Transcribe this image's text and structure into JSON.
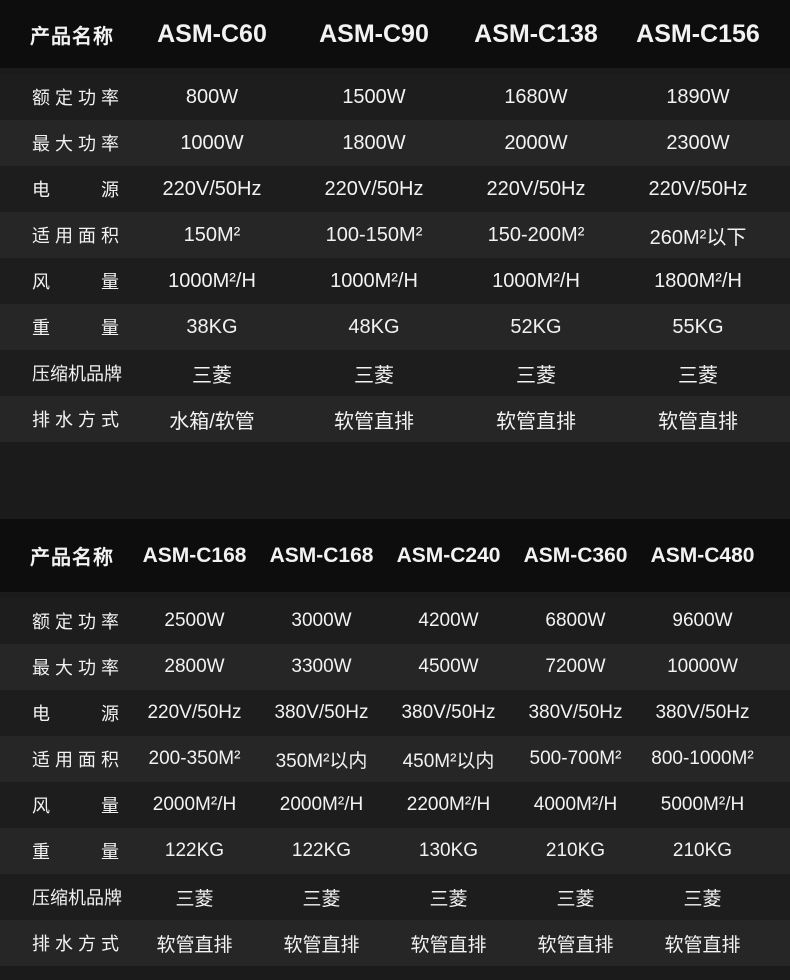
{
  "tables": [
    {
      "header_label": "产品名称",
      "models": [
        "ASM-C60",
        "ASM-C90",
        "ASM-C138",
        "ASM-C156"
      ],
      "rows": [
        {
          "label": "额定功率",
          "values": [
            "800W",
            "1500W",
            "1680W",
            "1890W"
          ]
        },
        {
          "label": "最大功率",
          "values": [
            "1000W",
            "1800W",
            "2000W",
            "2300W"
          ]
        },
        {
          "label": "电　　源",
          "values": [
            "220V/50Hz",
            "220V/50Hz",
            "220V/50Hz",
            "220V/50Hz"
          ]
        },
        {
          "label": "适用面积",
          "values": [
            "150M²",
            "100-150M²",
            "150-200M²",
            "260M²以下"
          ]
        },
        {
          "label": "风　　量",
          "values": [
            "1000M²/H",
            "1000M²/H",
            "1000M²/H",
            "1800M²/H"
          ]
        },
        {
          "label": "重　　量",
          "values": [
            "38KG",
            "48KG",
            "52KG",
            "55KG"
          ]
        },
        {
          "label": "压缩机品牌",
          "values": [
            "三菱",
            "三菱",
            "三菱",
            "三菱"
          ]
        },
        {
          "label": "排水方式",
          "values": [
            "水箱/软管",
            "软管直排",
            "软管直排",
            "软管直排"
          ]
        }
      ]
    },
    {
      "header_label": "产品名称",
      "models": [
        "ASM-C168",
        "ASM-C168",
        "ASM-C240",
        "ASM-C360",
        "ASM-C480"
      ],
      "rows": [
        {
          "label": "额定功率",
          "values": [
            "2500W",
            "3000W",
            "4200W",
            "6800W",
            "9600W"
          ]
        },
        {
          "label": "最大功率",
          "values": [
            "2800W",
            "3300W",
            "4500W",
            "7200W",
            "10000W"
          ]
        },
        {
          "label": "电　　源",
          "values": [
            "220V/50Hz",
            "380V/50Hz",
            "380V/50Hz",
            "380V/50Hz",
            "380V/50Hz"
          ]
        },
        {
          "label": "适用面积",
          "values": [
            "200-350M²",
            "350M²以内",
            "450M²以内",
            "500-700M²",
            "800-1000M²"
          ]
        },
        {
          "label": "风　　量",
          "values": [
            "2000M²/H",
            "2000M²/H",
            "2200M²/H",
            "4000M²/H",
            "5000M²/H"
          ]
        },
        {
          "label": "重　　量",
          "values": [
            "122KG",
            "122KG",
            "130KG",
            "210KG",
            "210KG"
          ]
        },
        {
          "label": "压缩机品牌",
          "values": [
            "三菱",
            "三菱",
            "三菱",
            "三菱",
            "三菱"
          ]
        },
        {
          "label": "排水方式",
          "values": [
            "软管直排",
            "软管直排",
            "软管直排",
            "软管直排",
            "软管直排"
          ]
        }
      ]
    }
  ]
}
